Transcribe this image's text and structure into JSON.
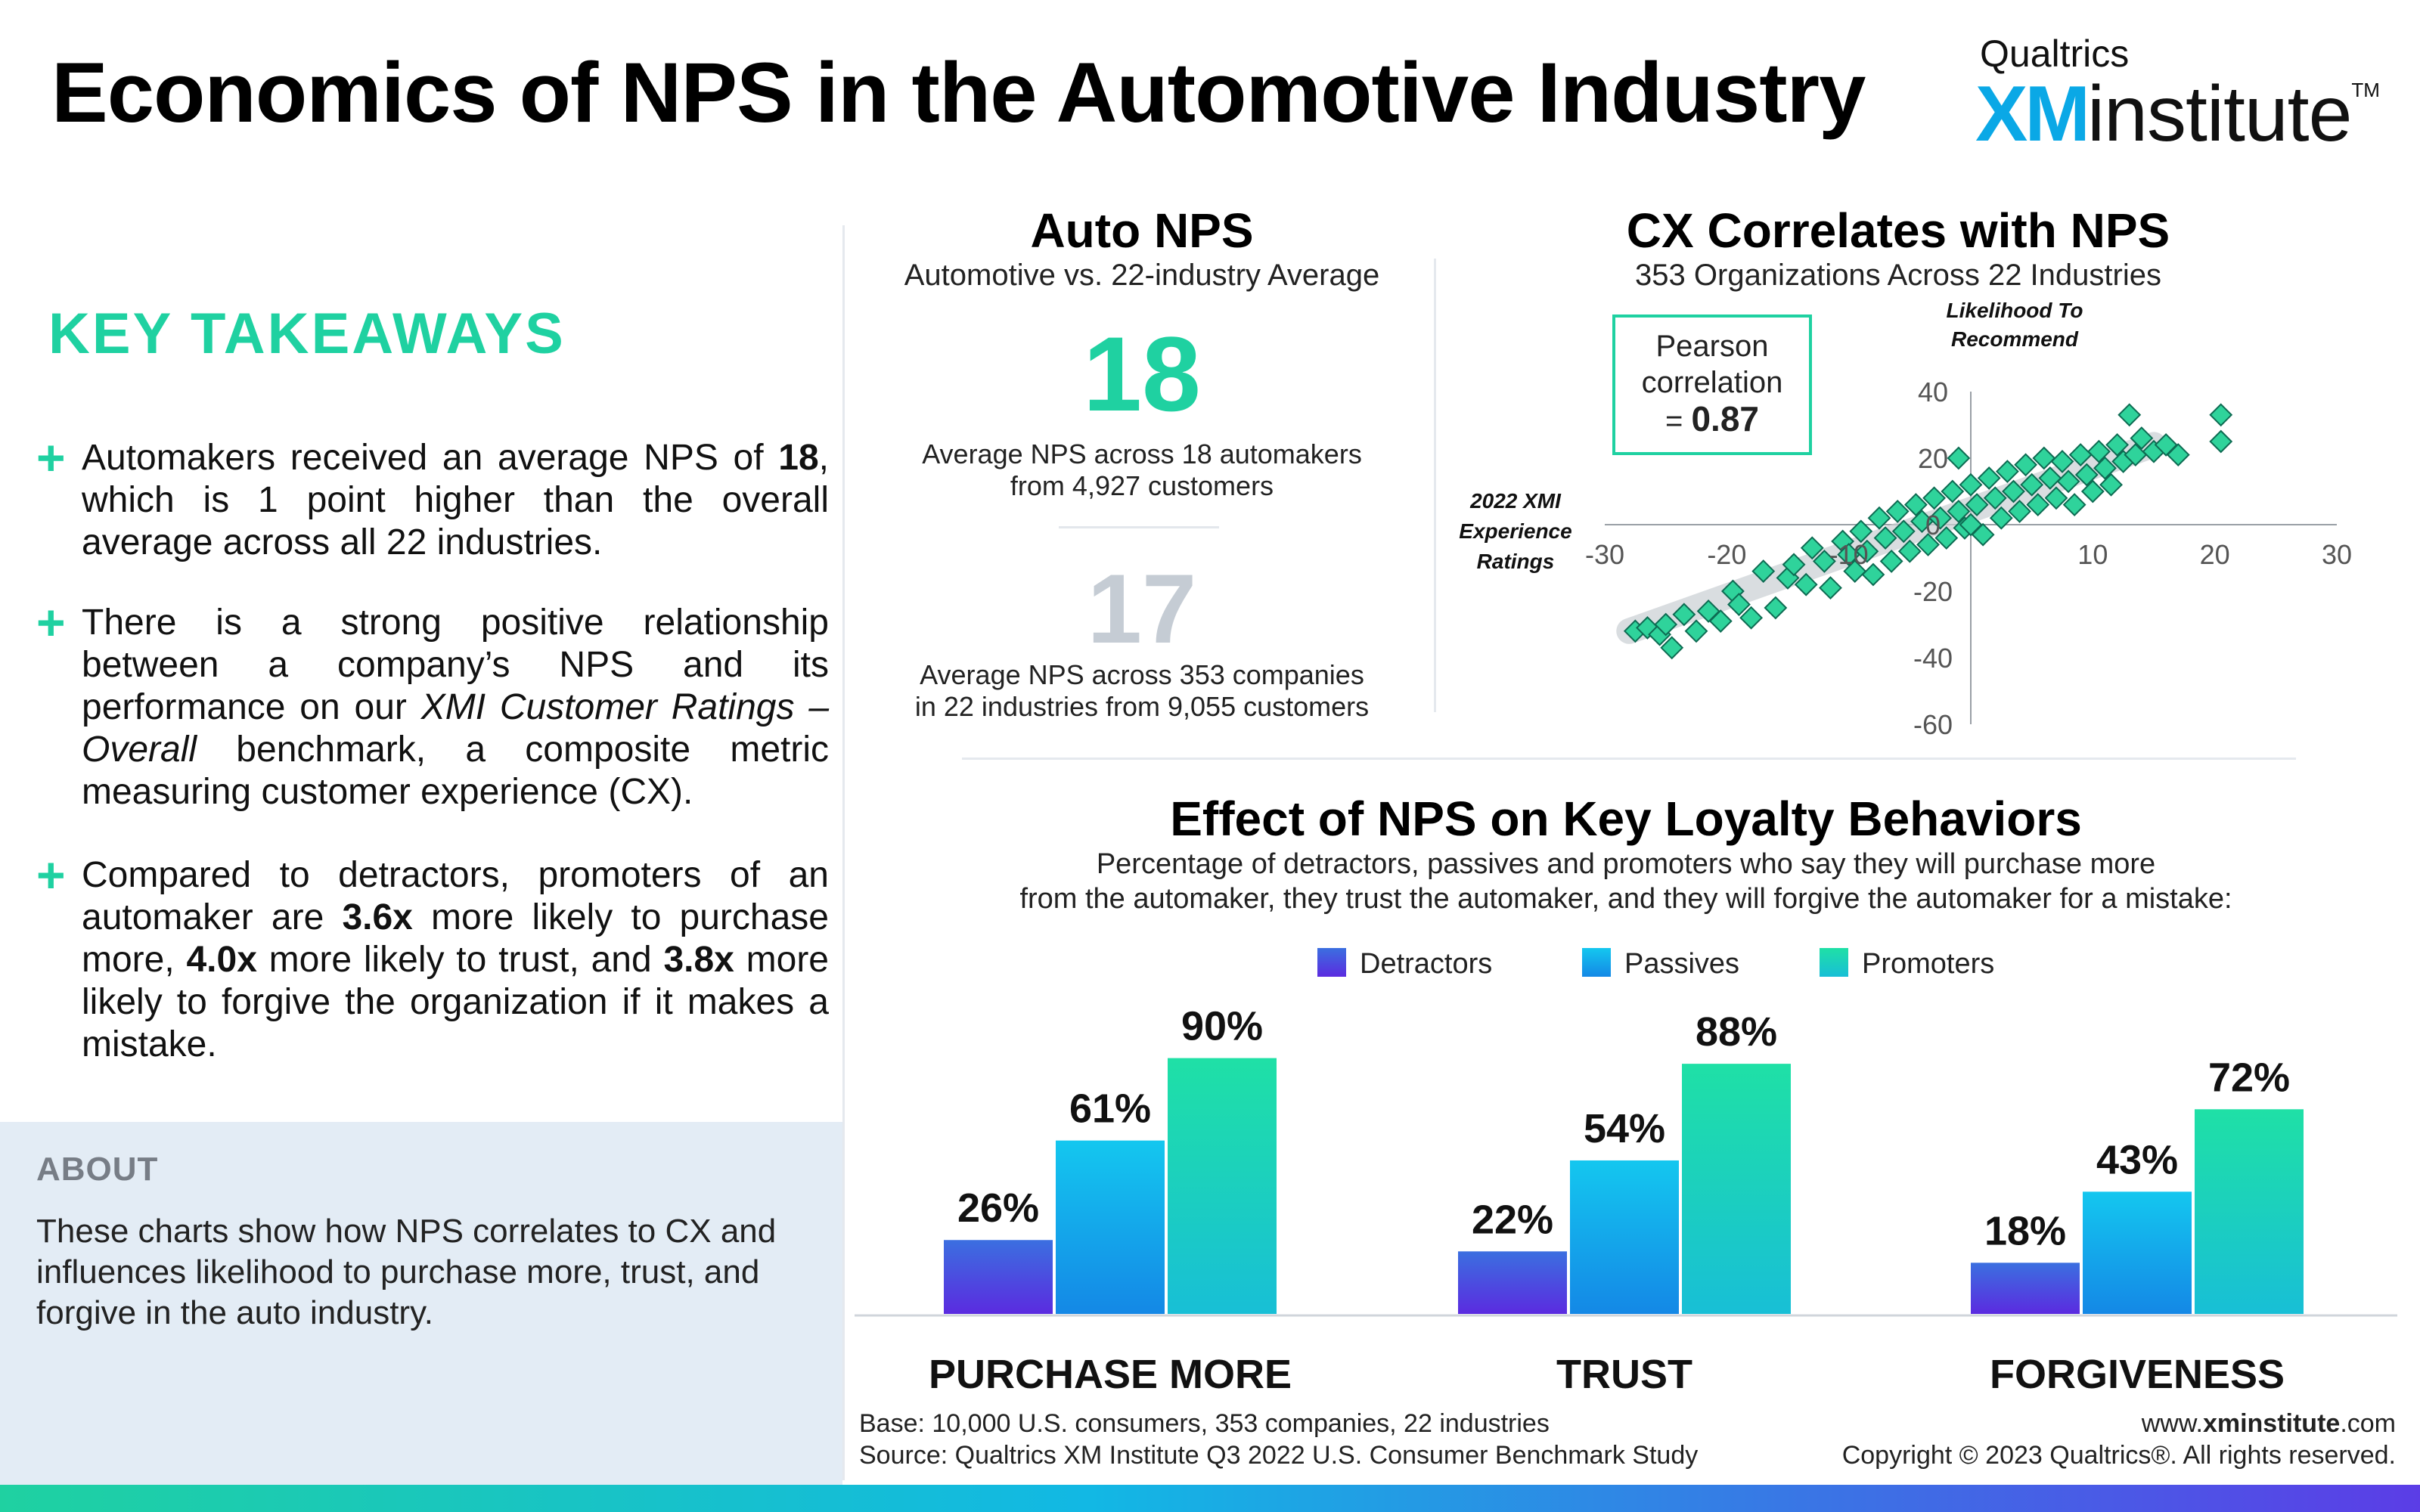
{
  "title": "Economics of NPS in the Automotive Industry",
  "logo": {
    "top": "Qualtrics",
    "xm": "XM",
    "institute": "institute",
    "tm": "TM"
  },
  "key_takeaways": {
    "heading": "KEY TAKEAWAYS",
    "items": [
      {
        "icon": "plus-icon"
      },
      {
        "icon": "plus-icon"
      },
      {
        "icon": "plus-icon"
      }
    ]
  },
  "about": {
    "heading": "ABOUT",
    "text": "These charts show how NPS correlates to CX and influences likelihood to purchase more, trust, and forgive in the auto industry."
  },
  "auto_nps": {
    "title": "Auto NPS",
    "subtitle": "Automotive vs. 22-industry Average",
    "auto_value": "18",
    "auto_desc_1": "Average NPS across 18 automakers",
    "auto_desc_2": "from 4,927 customers",
    "avg_value": "17",
    "avg_desc_1": "Average NPS across 353 companies",
    "avg_desc_2": "in 22 industries from 9,055 customers"
  },
  "cx": {
    "title": "CX Correlates with NPS",
    "subtitle": "353 Organizations Across 22 Industries",
    "pearson_line1": "Pearson",
    "pearson_line2": "correlation",
    "pearson_prefix": "= ",
    "pearson_value": "0.87"
  },
  "loyalty": {
    "title": "Effect of NPS on Key Loyalty Behaviors",
    "subtitle_1": "Percentage of detractors, passives and promoters who say they will purchase more",
    "subtitle_2": "from the automaker, they trust the automaker, and they will forgive the automaker for a mistake:"
  },
  "colors": {
    "accent": "#1fd1a1",
    "detractors_top": "#3b6fe0",
    "detractors_bottom": "#5b2be0",
    "passives_top": "#14c7ef",
    "passives_bottom": "#1488e6",
    "promoters_top": "#1fe0a6",
    "promoters_bottom": "#18bfd6",
    "gray_number": "#c5ccd4",
    "scatter_marker": "#2fd39b"
  },
  "chart_data": [
    {
      "type": "scatter",
      "title": "CX Correlates with NPS",
      "subtitle": "353 Organizations Across 22 Industries",
      "xlabel": "2022 XMI Experience Ratings",
      "ylabel": "Likelihood To Recommend",
      "xlim": [
        -30,
        30
      ],
      "ylim": [
        -60,
        40
      ],
      "xticks": [
        "-30",
        "-20",
        "-10",
        "10",
        "20",
        "30"
      ],
      "yticks": [
        "40",
        "20",
        "0",
        "-20",
        "-40",
        "-60"
      ],
      "annotation": "Pearson correlation = 0.87",
      "trend": {
        "x": [
          -28,
          15
        ],
        "y": [
          -32,
          24
        ]
      },
      "points": [
        [
          -27.5,
          -32
        ],
        [
          -26.5,
          -31
        ],
        [
          -25.5,
          -33
        ],
        [
          -25,
          -30
        ],
        [
          -24.5,
          -37
        ],
        [
          -23.5,
          -27
        ],
        [
          -22.5,
          -32
        ],
        [
          -21.5,
          -26
        ],
        [
          -20.5,
          -29
        ],
        [
          -19.5,
          -20
        ],
        [
          -19,
          -24
        ],
        [
          -18,
          -28
        ],
        [
          -17,
          -14
        ],
        [
          -16,
          -25
        ],
        [
          -15,
          -16
        ],
        [
          -14.5,
          -12
        ],
        [
          -13.5,
          -18
        ],
        [
          -13,
          -7
        ],
        [
          -12,
          -11
        ],
        [
          -11.5,
          -19
        ],
        [
          -10.5,
          -5
        ],
        [
          -10,
          -9
        ],
        [
          -9.5,
          -14
        ],
        [
          -9,
          -2
        ],
        [
          -8.5,
          -8
        ],
        [
          -8,
          -15
        ],
        [
          -7.5,
          2
        ],
        [
          -7,
          -4
        ],
        [
          -6.5,
          -11
        ],
        [
          -6,
          4
        ],
        [
          -5.5,
          -2
        ],
        [
          -5,
          -8
        ],
        [
          -4.5,
          6
        ],
        [
          -4,
          1
        ],
        [
          -3.5,
          -6
        ],
        [
          -3,
          8
        ],
        [
          -2.5,
          2
        ],
        [
          -2,
          -4
        ],
        [
          -1.5,
          10
        ],
        [
          -1,
          4
        ],
        [
          -0.5,
          -1
        ],
        [
          0,
          12
        ],
        [
          0,
          0
        ],
        [
          0.5,
          6
        ],
        [
          1,
          -3
        ],
        [
          1.5,
          14
        ],
        [
          2,
          8
        ],
        [
          2.5,
          2
        ],
        [
          3,
          16
        ],
        [
          3.5,
          10
        ],
        [
          4,
          4
        ],
        [
          4.5,
          18
        ],
        [
          5,
          12
        ],
        [
          5.5,
          6
        ],
        [
          6,
          20
        ],
        [
          6.5,
          14
        ],
        [
          7,
          8
        ],
        [
          7.5,
          19
        ],
        [
          8,
          13
        ],
        [
          8.5,
          6
        ],
        [
          9,
          21
        ],
        [
          9.5,
          15
        ],
        [
          10,
          10
        ],
        [
          10.5,
          22
        ],
        [
          11,
          17
        ],
        [
          11.5,
          12
        ],
        [
          12,
          24
        ],
        [
          12.5,
          19
        ],
        [
          13,
          33
        ],
        [
          13.5,
          21
        ],
        [
          14,
          26
        ],
        [
          15,
          22
        ],
        [
          16,
          24
        ],
        [
          17,
          21
        ],
        [
          20.5,
          25
        ],
        [
          20.5,
          33
        ],
        [
          -1,
          20
        ]
      ]
    },
    {
      "type": "bar",
      "title": "Effect of NPS on Key Loyalty Behaviors",
      "categories": [
        "PURCHASE MORE",
        "TRUST",
        "FORGIVENESS"
      ],
      "ylim": [
        0,
        100
      ],
      "series": [
        {
          "name": "Detractors",
          "values": [
            26,
            22,
            18
          ]
        },
        {
          "name": "Passives",
          "values": [
            61,
            54,
            43
          ]
        },
        {
          "name": "Promoters",
          "values": [
            90,
            88,
            72
          ]
        }
      ],
      "data_labels": [
        [
          "26%",
          "61%",
          "90%"
        ],
        [
          "22%",
          "54%",
          "88%"
        ],
        [
          "18%",
          "43%",
          "72%"
        ]
      ]
    }
  ],
  "footer": {
    "base": "Base: 10,000 U.S. consumers, 353 companies, 22 industries",
    "source": "Source: Qualtrics XM Institute Q3 2022 U.S. Consumer Benchmark Study",
    "url_pre": "www.",
    "url_bold": "xminstitute",
    "url_post": ".com",
    "copyright": "Copyright © 2023 Qualtrics®. All rights reserved."
  }
}
